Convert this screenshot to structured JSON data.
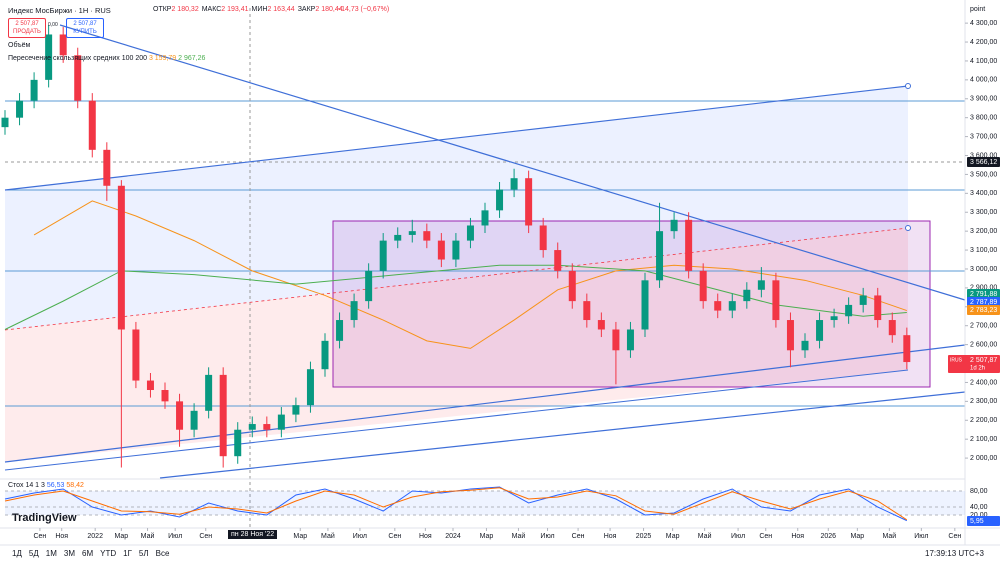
{
  "header": {
    "symbol": "Индекс МосБиржи · 1Н · RUS",
    "ohlc": [
      {
        "label": "ОТКР",
        "value": "2 180,32"
      },
      {
        "label": "МАКС",
        "value": "2 193,41"
      },
      {
        "label": "МИН",
        "value": "2 163,44"
      },
      {
        "label": "ЗАКР",
        "value": "2 180,44"
      }
    ],
    "change": "−14,73 (−0,67%)"
  },
  "trade": {
    "sell_price": "2 507,87",
    "sell": "ПРОДАТЬ",
    "spread": "0,00",
    "buy_price": "2 507,87",
    "buy": "КУПИТЬ"
  },
  "indicators": {
    "volume": "Объём",
    "ma_cross": "Пересечение скользящих средних 100 200",
    "ma_values": [
      "3 159,79",
      "2 967,26"
    ]
  },
  "scale_unit": "point",
  "badges": {
    "dashed": "3 566,12",
    "green": "2 791,88",
    "blue": "2 787,89",
    "orange": "2 783,23",
    "symbol": "IRUS",
    "last": "2 507,87",
    "timer": "1d 2h",
    "stoch": "5,95"
  },
  "crosshair_date": "пн 28 Ноя '22",
  "logo": "TradingView",
  "ranges": [
    "1Д",
    "5Д",
    "1М",
    "3М",
    "6М",
    "YTD",
    "1Г",
    "5Л",
    "Все"
  ],
  "clock": "17:39:13 UTC+3",
  "chart_data": [
    {
      "type": "candlestick",
      "x": [
        0,
        1,
        2,
        3,
        4,
        5,
        6,
        7,
        8,
        9,
        10,
        11,
        12,
        13,
        14,
        15,
        16,
        17,
        18,
        19,
        20,
        21,
        22,
        23,
        24,
        25,
        26,
        27,
        28,
        29,
        30,
        31,
        32,
        33,
        34,
        35,
        36,
        37,
        38,
        39,
        40,
        41,
        42,
        43,
        44,
        45,
        46,
        47,
        48,
        49,
        50,
        51,
        52,
        53,
        54,
        55,
        56,
        57,
        58,
        59,
        60,
        61,
        62
      ],
      "open": [
        3750,
        3800,
        3890,
        4000,
        4240,
        4130,
        3890,
        3630,
        3440,
        2680,
        2410,
        2360,
        2300,
        2150,
        2250,
        2440,
        2010,
        2150,
        2180,
        2150,
        2230,
        2280,
        2470,
        2620,
        2730,
        2830,
        2990,
        3150,
        3180,
        3200,
        3150,
        3050,
        3150,
        3230,
        3310,
        3420,
        3480,
        3230,
        3100,
        2990,
        2830,
        2730,
        2680,
        2570,
        2680,
        2940,
        3200,
        3260,
        2990,
        2830,
        2780,
        2830,
        2890,
        2940,
        2730,
        2570,
        2620,
        2730,
        2750,
        2810,
        2860,
        2730,
        2650
      ],
      "high": [
        3840,
        3930,
        4040,
        4290,
        4280,
        4170,
        3930,
        3670,
        3470,
        2720,
        2450,
        2400,
        2340,
        2290,
        2480,
        2480,
        2190,
        2220,
        2220,
        2270,
        2320,
        2510,
        2660,
        2770,
        2870,
        3030,
        3190,
        3220,
        3260,
        3240,
        3190,
        3190,
        3270,
        3350,
        3460,
        3530,
        3520,
        3270,
        3140,
        3030,
        2870,
        2770,
        2720,
        2720,
        2980,
        3350,
        3300,
        3300,
        3030,
        2870,
        2870,
        2930,
        3010,
        2980,
        2770,
        2660,
        2770,
        2790,
        2850,
        2900,
        2900,
        2770,
        2690
      ],
      "low": [
        3710,
        3760,
        3850,
        3960,
        4090,
        3850,
        3590,
        3360,
        1950,
        2370,
        2320,
        2260,
        2060,
        2110,
        2210,
        1950,
        1970,
        2110,
        2110,
        2110,
        2190,
        2240,
        2430,
        2580,
        2690,
        2790,
        2950,
        3110,
        3140,
        3110,
        3010,
        3010,
        3110,
        3190,
        3270,
        3380,
        3190,
        3060,
        2950,
        2790,
        2690,
        2640,
        2390,
        2530,
        2640,
        2900,
        3160,
        2950,
        2790,
        2740,
        2740,
        2790,
        2850,
        2690,
        2480,
        2530,
        2580,
        2690,
        2710,
        2770,
        2690,
        2610,
        2470
      ],
      "close": [
        3800,
        3890,
        4000,
        4240,
        4130,
        3890,
        3630,
        3440,
        2680,
        2410,
        2360,
        2300,
        2150,
        2250,
        2440,
        2010,
        2150,
        2180,
        2150,
        2230,
        2280,
        2470,
        2620,
        2730,
        2830,
        2990,
        3150,
        3180,
        3200,
        3150,
        3050,
        3150,
        3230,
        3310,
        3420,
        3480,
        3230,
        3100,
        2990,
        2830,
        2730,
        2680,
        2570,
        2680,
        2940,
        3200,
        3260,
        2990,
        2830,
        2780,
        2830,
        2890,
        2940,
        2730,
        2570,
        2620,
        2730,
        2750,
        2810,
        2860,
        2730,
        2650,
        2507.87
      ],
      "up_color": "#089981",
      "down_color": "#f23645",
      "overlays": [
        {
          "color": "#f7931a",
          "x": [
            2,
            6,
            9,
            13,
            17,
            22,
            26,
            29,
            32,
            35,
            38,
            42,
            46,
            50,
            55,
            59,
            62
          ],
          "values": [
            3180,
            3360,
            3280,
            3150,
            2990,
            2860,
            2730,
            2620,
            2580,
            2730,
            2890,
            2990,
            3020,
            3000,
            2940,
            2860,
            2780
          ]
        },
        {
          "color": "#4caf50",
          "x": [
            0,
            4,
            8,
            13,
            20,
            27,
            34,
            38,
            44,
            48,
            53,
            59,
            62
          ],
          "values": [
            2680,
            2830,
            2990,
            2970,
            2920,
            2970,
            3020,
            3020,
            2990,
            2910,
            2810,
            2750,
            2770
          ]
        }
      ],
      "xlim": [
        0,
        66
      ],
      "xticks": [
        {
          "value": 2.4,
          "label": "Сен"
        },
        {
          "value": 3.9,
          "label": "Ноя"
        },
        {
          "value": 6.2,
          "label": "2022"
        },
        {
          "value": 8.0,
          "label": "Мар"
        },
        {
          "value": 9.8,
          "label": "Май"
        },
        {
          "value": 11.7,
          "label": "Июл"
        },
        {
          "value": 13.8,
          "label": "Сен"
        },
        {
          "value": 20.3,
          "label": "Мар"
        },
        {
          "value": 22.2,
          "label": "Май"
        },
        {
          "value": 24.4,
          "label": "Июл"
        },
        {
          "value": 26.8,
          "label": "Сен"
        },
        {
          "value": 28.9,
          "label": "Ноя"
        },
        {
          "value": 30.8,
          "label": "2024"
        },
        {
          "value": 33.1,
          "label": "Мар"
        },
        {
          "value": 35.3,
          "label": "Май"
        },
        {
          "value": 37.3,
          "label": "Июл"
        },
        {
          "value": 39.4,
          "label": "Сен"
        },
        {
          "value": 41.6,
          "label": "Ноя"
        },
        {
          "value": 43.9,
          "label": "2025"
        },
        {
          "value": 45.9,
          "label": "Мар"
        },
        {
          "value": 48.1,
          "label": "Май"
        },
        {
          "value": 50.4,
          "label": "Июл"
        },
        {
          "value": 52.3,
          "label": "Сен"
        },
        {
          "value": 54.5,
          "label": "Ноя"
        },
        {
          "value": 56.6,
          "label": "2026"
        },
        {
          "value": 58.6,
          "label": "Мар"
        },
        {
          "value": 60.8,
          "label": "Май"
        },
        {
          "value": 63.0,
          "label": "Июл"
        },
        {
          "value": 65.3,
          "label": "Сен"
        }
      ],
      "ylim": [
        1900,
        4380
      ],
      "yticks": [
        {
          "value": 4300,
          "label": "4 300,00"
        },
        {
          "value": 4200,
          "label": "4 200,00"
        },
        {
          "value": 4100,
          "label": "4 100,00"
        },
        {
          "value": 4000,
          "label": "4 000,00"
        },
        {
          "value": 3900,
          "label": "3 900,00"
        },
        {
          "value": 3800,
          "label": "3 800,00"
        },
        {
          "value": 3700,
          "label": "3 700,00"
        },
        {
          "value": 3600,
          "label": "3 600,00"
        },
        {
          "value": 3500,
          "label": "3 500,00"
        },
        {
          "value": 3400,
          "label": "3 400,00"
        },
        {
          "value": 3300,
          "label": "3 300,00"
        },
        {
          "value": 3200,
          "label": "3 200,00"
        },
        {
          "value": 3100,
          "label": "3 100,00"
        },
        {
          "value": 3000,
          "label": "3 000,00"
        },
        {
          "value": 2900,
          "label": "2 900,00"
        },
        {
          "value": 2800,
          "label": "2 800,00"
        },
        {
          "value": 2700,
          "label": "2 700,00"
        },
        {
          "value": 2600,
          "label": "2 600,00"
        },
        {
          "value": 2500,
          "label": "2 500,00"
        },
        {
          "value": 2400,
          "label": "2 400,00"
        },
        {
          "value": 2300,
          "label": "2 300,00"
        },
        {
          "value": 2200,
          "label": "2 200,00"
        },
        {
          "value": 2100,
          "label": "2 100,00"
        },
        {
          "value": 2000,
          "label": "2 000,00"
        }
      ]
    },
    {
      "type": "line",
      "title": "Стох 14 1 3",
      "legend_values": [
        "56,53",
        "58,42"
      ],
      "x": [
        0,
        2,
        4,
        6,
        8,
        10,
        12,
        14,
        16,
        18,
        20,
        22,
        24,
        26,
        28,
        30,
        32,
        34,
        36,
        38,
        40,
        42,
        44,
        46,
        48,
        50,
        52,
        54,
        56,
        58,
        60,
        62
      ],
      "series": [
        {
          "color": "#2962ff",
          "values": [
            60,
            75,
            85,
            40,
            20,
            30,
            15,
            50,
            30,
            20,
            70,
            85,
            60,
            30,
            80,
            75,
            85,
            90,
            50,
            70,
            85,
            60,
            20,
            25,
            60,
            85,
            40,
            30,
            70,
            85,
            40,
            5.95
          ]
        },
        {
          "color": "#ff6d00",
          "values": [
            55,
            70,
            80,
            55,
            30,
            28,
            22,
            40,
            35,
            25,
            55,
            80,
            70,
            40,
            65,
            78,
            82,
            88,
            60,
            65,
            80,
            68,
            30,
            22,
            50,
            78,
            55,
            35,
            60,
            80,
            55,
            8
          ]
        }
      ],
      "band": [
        20,
        80
      ],
      "ylim": [
        0,
        100
      ],
      "yticks": [
        {
          "value": 80,
          "label": "80,00"
        },
        {
          "value": 40,
          "label": "40,00"
        },
        {
          "value": 20,
          "label": "20,00"
        }
      ]
    }
  ]
}
